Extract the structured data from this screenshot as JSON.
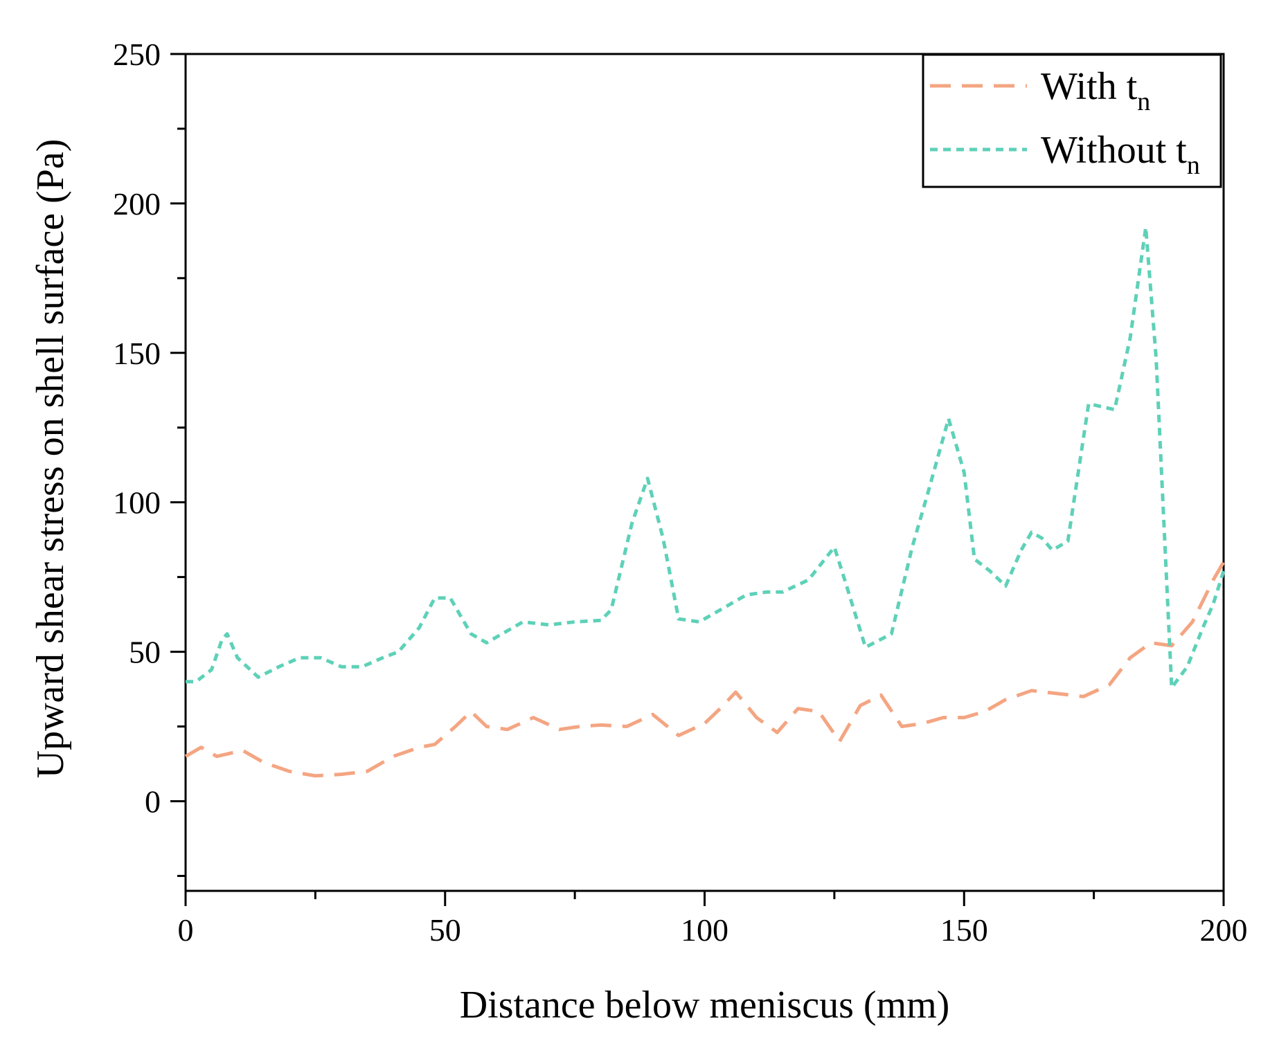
{
  "chart_data": {
    "type": "line",
    "title": "",
    "xlabel": "Distance below meniscus (mm)",
    "ylabel": "Upward shear stress on shell surface (Pa)",
    "xlim": [
      0,
      200
    ],
    "ylim": [
      -30,
      250
    ],
    "x_ticks": [
      0,
      50,
      100,
      150,
      200
    ],
    "y_ticks": [
      0,
      50,
      100,
      150,
      200,
      250
    ],
    "x_tick_labels": [
      "0",
      "50",
      "100",
      "150",
      "200"
    ],
    "y_tick_labels": [
      "0",
      "50",
      "100",
      "150",
      "200",
      "250"
    ],
    "legend_position": "top-right",
    "series": [
      {
        "name": "With t",
        "name_subscript": "n",
        "color": "#F4A582",
        "dash": "dashed",
        "points": [
          [
            0,
            15
          ],
          [
            3,
            18
          ],
          [
            6,
            15
          ],
          [
            11,
            17
          ],
          [
            15,
            13
          ],
          [
            20,
            10
          ],
          [
            25,
            8.5
          ],
          [
            30,
            9
          ],
          [
            35,
            10
          ],
          [
            40,
            15
          ],
          [
            45,
            18
          ],
          [
            48,
            19
          ],
          [
            52,
            25
          ],
          [
            55,
            30
          ],
          [
            58,
            25
          ],
          [
            62,
            24
          ],
          [
            67,
            28
          ],
          [
            72,
            24
          ],
          [
            76,
            25
          ],
          [
            80,
            25.5
          ],
          [
            85,
            25
          ],
          [
            90,
            29
          ],
          [
            95,
            22
          ],
          [
            100,
            26
          ],
          [
            103,
            31
          ],
          [
            106,
            36.5
          ],
          [
            110,
            28
          ],
          [
            114,
            23
          ],
          [
            118,
            31
          ],
          [
            122,
            30
          ],
          [
            126,
            20
          ],
          [
            130,
            32
          ],
          [
            134,
            35.5
          ],
          [
            138,
            25
          ],
          [
            142,
            26
          ],
          [
            146,
            28
          ],
          [
            150,
            28
          ],
          [
            154,
            30
          ],
          [
            158,
            34
          ],
          [
            163,
            37
          ],
          [
            168,
            36
          ],
          [
            173,
            35
          ],
          [
            178,
            39
          ],
          [
            182,
            48
          ],
          [
            186,
            53
          ],
          [
            190,
            52
          ],
          [
            194,
            60
          ],
          [
            198,
            74
          ],
          [
            200,
            80
          ]
        ]
      },
      {
        "name": "Without t",
        "name_subscript": "n",
        "color": "#5ED1B8",
        "dash": "dotted",
        "points": [
          [
            0,
            40
          ],
          [
            2,
            40
          ],
          [
            5,
            44
          ],
          [
            7,
            54
          ],
          [
            8,
            56
          ],
          [
            10,
            48
          ],
          [
            14,
            41.5
          ],
          [
            18,
            45
          ],
          [
            22,
            48
          ],
          [
            26,
            48
          ],
          [
            30,
            45
          ],
          [
            34,
            45
          ],
          [
            38,
            48
          ],
          [
            41,
            50
          ],
          [
            45,
            58
          ],
          [
            48,
            68
          ],
          [
            51,
            68
          ],
          [
            55,
            56
          ],
          [
            58,
            53
          ],
          [
            62,
            57
          ],
          [
            65,
            60
          ],
          [
            70,
            59
          ],
          [
            75,
            60
          ],
          [
            80,
            60.5
          ],
          [
            82,
            64
          ],
          [
            86,
            93
          ],
          [
            89,
            108
          ],
          [
            92,
            88
          ],
          [
            95,
            61
          ],
          [
            99,
            60
          ],
          [
            104,
            65
          ],
          [
            108,
            69
          ],
          [
            112,
            70
          ],
          [
            115,
            70
          ],
          [
            120,
            74
          ],
          [
            125,
            85
          ],
          [
            127,
            74
          ],
          [
            131,
            51.5
          ],
          [
            136,
            56
          ],
          [
            140,
            85
          ],
          [
            143,
            103
          ],
          [
            147,
            128
          ],
          [
            150,
            110
          ],
          [
            152,
            81
          ],
          [
            155,
            77
          ],
          [
            158,
            72
          ],
          [
            161,
            84
          ],
          [
            163,
            90
          ],
          [
            165,
            88
          ],
          [
            167,
            84
          ],
          [
            170,
            87
          ],
          [
            174,
            133
          ],
          [
            179,
            131
          ],
          [
            182,
            155
          ],
          [
            185,
            192
          ],
          [
            187,
            148
          ],
          [
            190,
            38
          ],
          [
            193,
            45
          ],
          [
            196,
            58
          ],
          [
            198,
            66
          ],
          [
            200,
            77
          ]
        ]
      }
    ]
  }
}
